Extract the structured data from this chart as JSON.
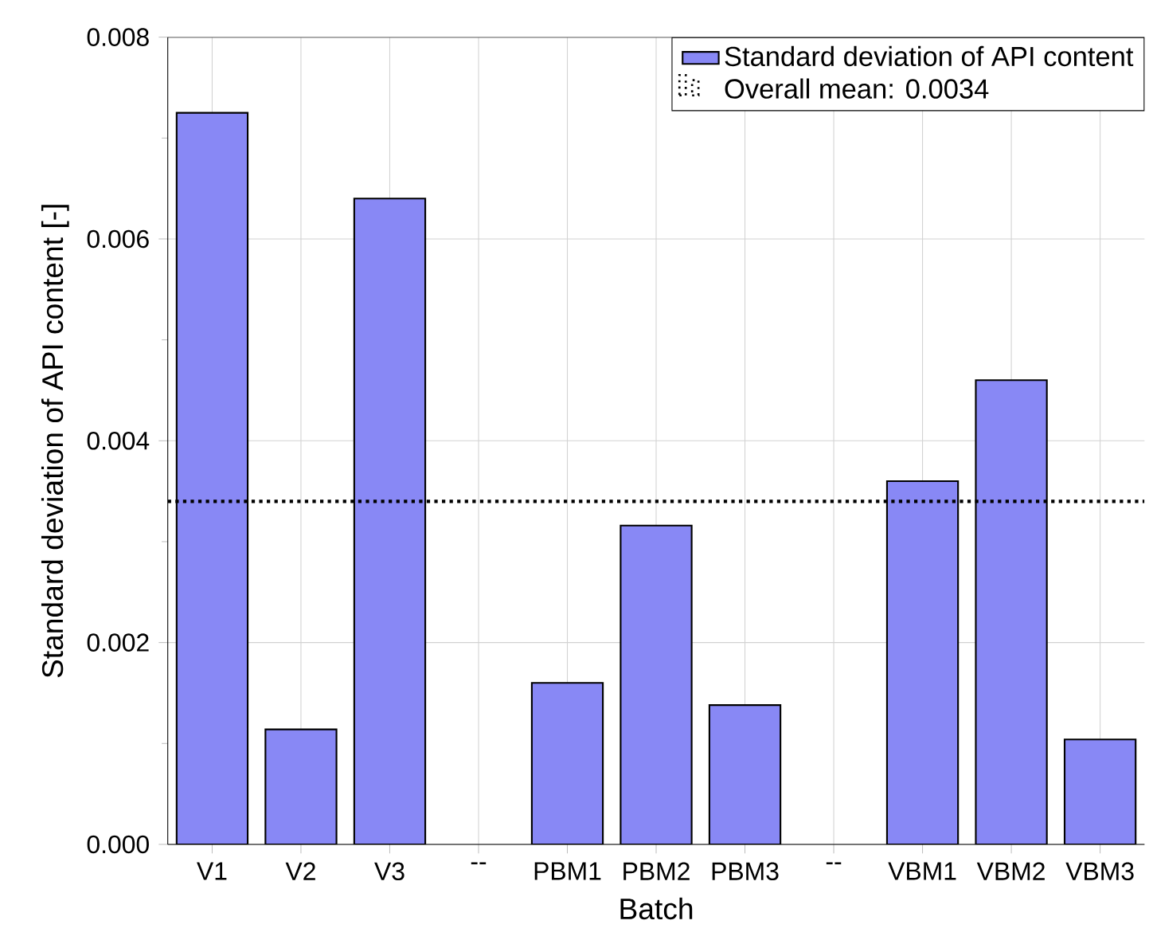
{
  "chart_data": {
    "type": "bar",
    "xlabel": "Batch",
    "ylabel": "Standard deviation of API content [-]",
    "categories": [
      "V1",
      "V2",
      "V3",
      "--",
      "PBM1",
      "PBM2",
      "PBM3",
      "--",
      "VBM1",
      "VBM2",
      "VBM3"
    ],
    "series": [
      {
        "name": "Standard deviation of API content",
        "color": "#8888f5",
        "values": [
          0.00725,
          0.00114,
          0.0064,
          null,
          0.0016,
          0.00316,
          0.00138,
          null,
          0.0036,
          0.0046,
          0.00104
        ]
      }
    ],
    "ylim": [
      0,
      0.008
    ],
    "yticks": [
      {
        "value": 0,
        "label": "0.000"
      },
      {
        "value": 0.002,
        "label": "0.002"
      },
      {
        "value": 0.004,
        "label": "0.004"
      },
      {
        "value": 0.006,
        "label": "0.006"
      },
      {
        "value": 0.008,
        "label": "0.008"
      }
    ],
    "ref_lines": [
      {
        "axis": "y",
        "value": 0.0034,
        "label": "Overall mean: 0.0034",
        "line_style": "dotted",
        "color": "#000000"
      }
    ],
    "grid": true,
    "legend": "top right"
  }
}
